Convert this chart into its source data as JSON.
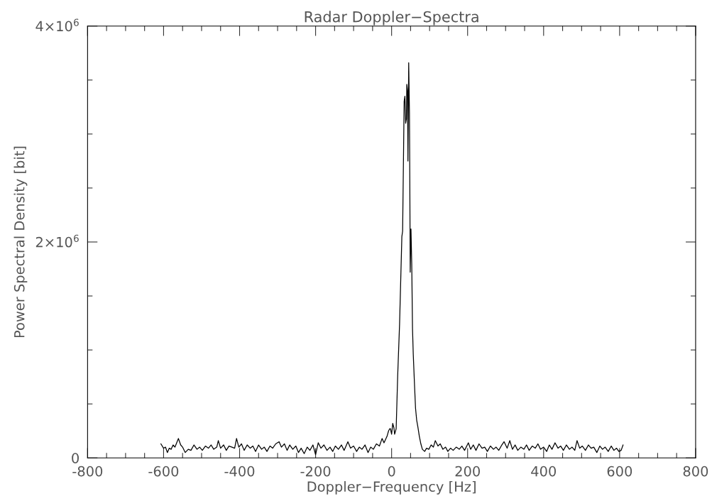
{
  "chart_data": {
    "type": "line",
    "title": "Radar Doppler−Spectra",
    "xlabel": "Doppler−Frequency [Hz]",
    "ylabel": "Power Spectral Density [bit]",
    "series": [
      {
        "color": "#000000",
        "x": [
          -607,
          -600,
          -595,
          -590,
          -585,
          -580,
          -575,
          -570,
          -561,
          -555,
          -550,
          -543,
          -535,
          -528,
          -520,
          -512,
          -505,
          -498,
          -490,
          -482,
          -475,
          -468,
          -460,
          -456,
          -450,
          -442,
          -435,
          -428,
          -420,
          -413,
          -408,
          -402,
          -395,
          -388,
          -380,
          -372,
          -365,
          -358,
          -350,
          -342,
          -335,
          -328,
          -320,
          -313,
          -305,
          -296,
          -290,
          -282,
          -275,
          -268,
          -260,
          -252,
          -245,
          -238,
          -230,
          -222,
          -215,
          -207,
          -200,
          -193,
          -186,
          -178,
          -170,
          -162,
          -155,
          -148,
          -140,
          -132,
          -125,
          -115,
          -108,
          -100,
          -92,
          -85,
          -78,
          -70,
          -62,
          -55,
          -48,
          -40,
          -32,
          -25,
          -20,
          -12,
          -8,
          -5,
          -3,
          0,
          3,
          6,
          8,
          12,
          16,
          21,
          27,
          29,
          33,
          35,
          37,
          39,
          40,
          42,
          43,
          45,
          47,
          48,
          49,
          51,
          53,
          55,
          57,
          60,
          63,
          66,
          69,
          73,
          77,
          81,
          87,
          92,
          98,
          104,
          110,
          115,
          122,
          128,
          135,
          142,
          148,
          155,
          162,
          170,
          178,
          185,
          192,
          202,
          208,
          215,
          222,
          230,
          238,
          245,
          252,
          260,
          268,
          275,
          282,
          290,
          296,
          304,
          311,
          318,
          325,
          332,
          340,
          348,
          355,
          362,
          370,
          378,
          385,
          392,
          400,
          408,
          415,
          422,
          430,
          438,
          445,
          452,
          460,
          468,
          475,
          482,
          488,
          495,
          502,
          510,
          518,
          525,
          532,
          540,
          548,
          555,
          562,
          570,
          578,
          585,
          592,
          598,
          604,
          609
        ],
        "values": [
          130000,
          90000,
          100000,
          50000,
          90000,
          80000,
          120000,
          100000,
          180000,
          120000,
          100000,
          50000,
          80000,
          70000,
          120000,
          80000,
          100000,
          70000,
          110000,
          90000,
          120000,
          80000,
          100000,
          160000,
          90000,
          120000,
          70000,
          110000,
          100000,
          90000,
          180000,
          100000,
          130000,
          70000,
          120000,
          90000,
          110000,
          60000,
          120000,
          80000,
          100000,
          60000,
          110000,
          90000,
          130000,
          150000,
          100000,
          130000,
          70000,
          120000,
          80000,
          110000,
          50000,
          90000,
          40000,
          100000,
          70000,
          120000,
          30000,
          140000,
          90000,
          120000,
          70000,
          100000,
          60000,
          110000,
          80000,
          120000,
          70000,
          150000,
          90000,
          110000,
          60000,
          100000,
          80000,
          120000,
          50000,
          100000,
          80000,
          130000,
          110000,
          180000,
          140000,
          200000,
          250000,
          270000,
          270000,
          220000,
          320000,
          280000,
          220000,
          270000,
          760000,
          1240000,
          2050000,
          2100000,
          3300000,
          3350000,
          3100000,
          3140000,
          3460000,
          3400000,
          2750000,
          3660000,
          3200000,
          2500000,
          1720000,
          2120000,
          1800000,
          1200000,
          960000,
          700000,
          460000,
          350000,
          290000,
          200000,
          130000,
          80000,
          60000,
          90000,
          80000,
          120000,
          100000,
          160000,
          110000,
          130000,
          80000,
          100000,
          60000,
          90000,
          70000,
          100000,
          80000,
          110000,
          70000,
          140000,
          80000,
          120000,
          70000,
          130000,
          90000,
          100000,
          60000,
          110000,
          80000,
          100000,
          70000,
          120000,
          150000,
          90000,
          160000,
          80000,
          120000,
          70000,
          100000,
          80000,
          120000,
          70000,
          110000,
          90000,
          130000,
          80000,
          100000,
          60000,
          120000,
          80000,
          140000,
          90000,
          110000,
          70000,
          120000,
          80000,
          100000,
          70000,
          160000,
          90000,
          110000,
          70000,
          120000,
          90000,
          100000,
          50000,
          110000,
          80000,
          100000,
          60000,
          110000,
          70000,
          90000,
          60000,
          70000,
          120000
        ]
      }
    ],
    "xlim": [
      -800,
      800
    ],
    "xticks": [
      -800,
      {
        "value": -750,
        "label": null
      },
      {
        "value": -700,
        "label": null
      },
      {
        "value": -650,
        "label": null
      },
      -600,
      {
        "value": -550,
        "label": null
      },
      {
        "value": -500,
        "label": null
      },
      {
        "value": -450,
        "label": null
      },
      -400,
      {
        "value": -350,
        "label": null
      },
      {
        "value": -300,
        "label": null
      },
      {
        "value": -250,
        "label": null
      },
      -200,
      {
        "value": -150,
        "label": null
      },
      {
        "value": -100,
        "label": null
      },
      {
        "value": -50,
        "label": null
      },
      0,
      {
        "value": 50,
        "label": null
      },
      {
        "value": 100,
        "label": null
      },
      {
        "value": 150,
        "label": null
      },
      200,
      {
        "value": 250,
        "label": null
      },
      {
        "value": 300,
        "label": null
      },
      {
        "value": 350,
        "label": null
      },
      400,
      {
        "value": 450,
        "label": null
      },
      {
        "value": 500,
        "label": null
      },
      {
        "value": 550,
        "label": null
      },
      600,
      {
        "value": 650,
        "label": null
      },
      {
        "value": 700,
        "label": null
      },
      {
        "value": 750,
        "label": null
      },
      800
    ],
    "ylim": [
      0,
      4000000
    ],
    "yticks": [
      0,
      {
        "value": 500000,
        "label": null
      },
      {
        "value": 1000000,
        "label": null
      },
      {
        "value": 1500000,
        "label": null
      },
      {
        "value": 2000000,
        "label": "2×10$^{6}$"
      },
      {
        "value": 2500000,
        "label": null
      },
      {
        "value": 3000000,
        "label": null
      },
      {
        "value": 3500000,
        "label": null
      },
      {
        "value": 4000000,
        "label": "4×10$^{6}$"
      }
    ],
    "grid": false,
    "legend": false,
    "marker": "none",
    "line_style": "solid"
  }
}
